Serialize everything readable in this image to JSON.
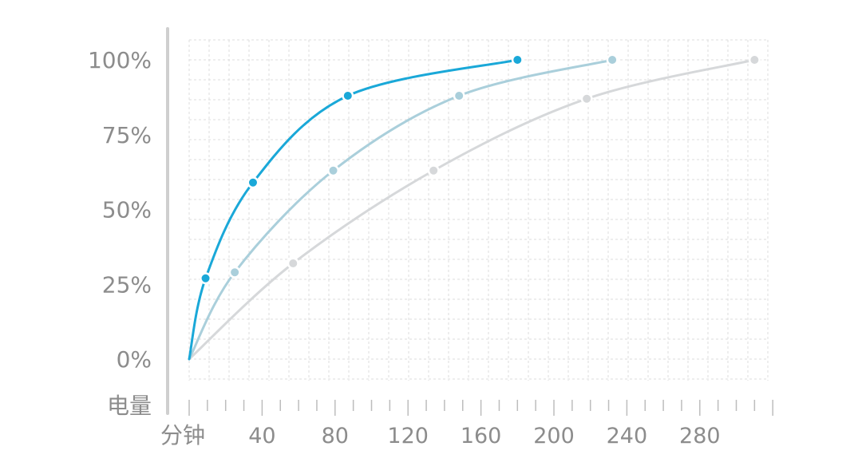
{
  "chart_data": {
    "type": "line",
    "xlabel": "分钟",
    "ylabel": "电量",
    "xlim": [
      0,
      320
    ],
    "ylim": [
      0,
      100
    ],
    "x_ticks": [
      40,
      80,
      120,
      160,
      200,
      240,
      280
    ],
    "x_tick_labels": [
      "40",
      "80",
      "120",
      "160",
      "200",
      "240",
      "280"
    ],
    "y_ticks": [
      0,
      25,
      50,
      75,
      100
    ],
    "y_tick_labels": [
      "0%",
      "25%",
      "50%",
      "75%",
      "100%"
    ],
    "grid": true,
    "series": [
      {
        "color": "#1aa8d8",
        "x": [
          0,
          9,
          35,
          87,
          180
        ],
        "y": [
          0,
          27,
          59,
          88,
          100
        ]
      },
      {
        "color": "#aacfdb",
        "x": [
          0,
          25,
          79,
          148,
          232
        ],
        "y": [
          0,
          29,
          63,
          88,
          100
        ]
      },
      {
        "color": "#d6d8da",
        "x": [
          0,
          57,
          134,
          218,
          310
        ],
        "y": [
          0,
          32,
          63,
          87,
          100
        ]
      }
    ]
  }
}
